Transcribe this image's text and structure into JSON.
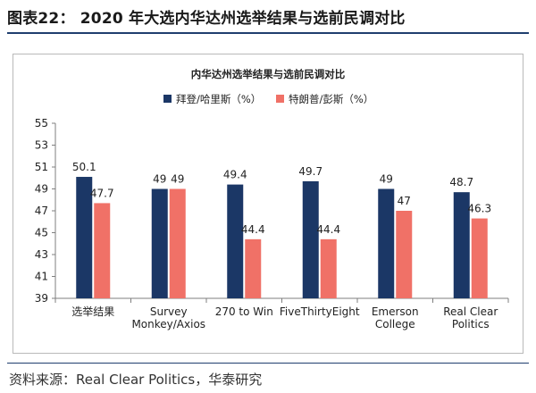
{
  "figure": {
    "title": "图表22： 2020 年大选内华达州选举结果与选前民调对比",
    "source": "资料来源：Real Clear Politics，华泰研究"
  },
  "colors": {
    "series1": "#1b3766",
    "series2": "#f07167",
    "rule": "#1f3e6e",
    "axis": "#7f7f7f"
  },
  "chart_data": {
    "type": "bar",
    "title": "内华达州选举结果与选前民调对比",
    "categories": [
      "选举结果",
      "Survey\nMonkey/Axios",
      "270 to Win",
      "FiveThirtyEight",
      "Emerson\nCollege",
      "Real Clear\nPolitics"
    ],
    "series": [
      {
        "name": "拜登/哈里斯（%）",
        "values": [
          50.1,
          49,
          49.4,
          49.7,
          49,
          48.7
        ]
      },
      {
        "name": "特朗普/彭斯（%）",
        "values": [
          47.7,
          49,
          44.4,
          44.4,
          47,
          46.3
        ]
      }
    ],
    "ylim": [
      39,
      55
    ],
    "yticks": [
      39,
      41,
      43,
      45,
      47,
      49,
      51,
      53,
      55
    ],
    "legend_position": "top-center",
    "grid": false,
    "data_labels": true
  }
}
